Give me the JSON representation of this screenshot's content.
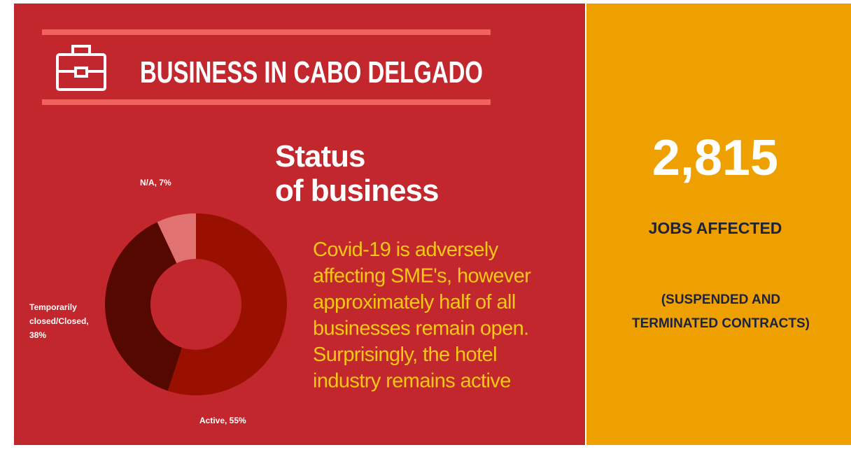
{
  "header": {
    "title": "BUSINESS IN CABO DELGADO"
  },
  "chart_data": {
    "type": "donut",
    "title": [
      "Status",
      "of business"
    ],
    "values": [
      55,
      38,
      7
    ],
    "value_labels": [
      "Active, 55%",
      "Temporarily closed/Closed, 38%",
      "N/A, 7%"
    ],
    "colors": [
      "#9a1000",
      "#540800",
      "#e07272"
    ]
  },
  "description": [
    "Covid-19 is adversely",
    "affecting SME's, however",
    "approximately half of all",
    "businesses remain open.",
    "Surprisingly, the hotel",
    "industry remains active"
  ],
  "stat": {
    "value": "2,815",
    "label": "JOBS AFFECTED",
    "note": [
      "(SUSPENDED AND",
      "TERMINATED CONTRACTS)"
    ]
  }
}
